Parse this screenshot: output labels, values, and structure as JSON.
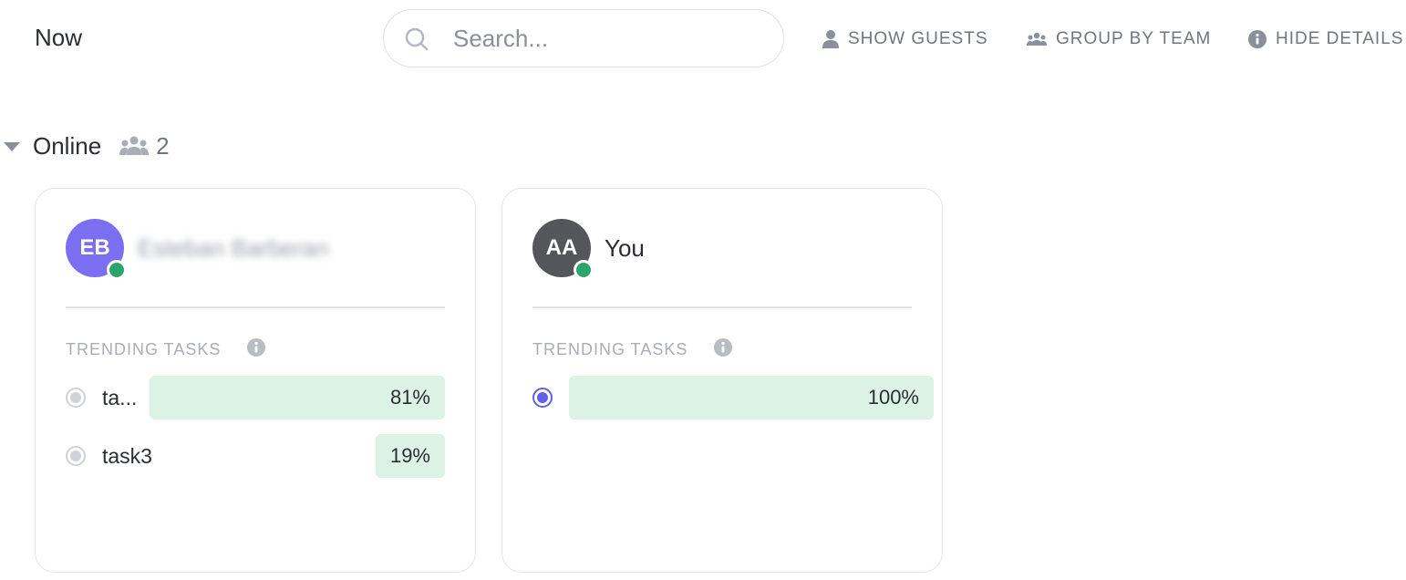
{
  "header": {
    "title": "Now",
    "search_placeholder": "Search...",
    "search_value": "",
    "buttons": {
      "show_guests": "SHOW GUESTS",
      "group_by_team": "GROUP BY TEAM",
      "hide_details": "HIDE DETAILS"
    }
  },
  "section": {
    "label": "Online",
    "count": "2"
  },
  "cards": [
    {
      "initials": "EB",
      "name": "Esteban Barberan",
      "avatar_color": "#7b6ef0",
      "status": "online",
      "trending_label": "TRENDING TASKS",
      "tasks": [
        {
          "name": "ta...",
          "percent": "81%",
          "value": 0.81
        },
        {
          "name": "task3",
          "percent": "19%",
          "value": 0.19
        }
      ]
    },
    {
      "initials": "AA",
      "name": "You",
      "avatar_color": "#55565c",
      "status": "online",
      "trending_label": "TRENDING TASKS",
      "tasks": [
        {
          "name": "",
          "percent": "100%",
          "value": 1.0,
          "active": true
        }
      ]
    }
  ],
  "colors": {
    "presence_online": "#2ea36b",
    "bar_fill": "#dcf2e4",
    "active_radio": "#6160e8"
  }
}
